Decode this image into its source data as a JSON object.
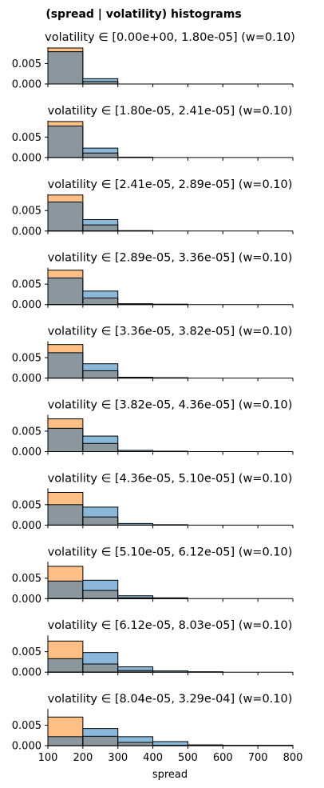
{
  "figure": {
    "title": "(spread | volatility) histograms"
  },
  "colors": {
    "series_a": "#1f77b4",
    "series_b": "#ff7f0e",
    "series_a_fill": "#8ab8da",
    "series_b_fill": "#ffbf85",
    "overlap_fill": "#8b979f",
    "edge": "#000000"
  },
  "chart_data": [
    {
      "type": "bar",
      "title": "volatility ∈ [0.00e+00, 1.80e-05] (w=0.10)",
      "bin_edges": [
        100,
        200,
        300,
        400,
        500,
        600,
        700,
        800
      ],
      "series": [
        {
          "values": [
            0.0079,
            0.0013,
            0,
            0,
            0,
            0,
            0
          ]
        },
        {
          "values": [
            0.0088,
            0.0006,
            0,
            0,
            0,
            0,
            0
          ]
        }
      ],
      "xlim": [
        100,
        800
      ],
      "ylim": [
        0,
        0.0088
      ],
      "yticks": [
        "0.000",
        "0.005"
      ],
      "xlabel": "",
      "ylabel": ""
    },
    {
      "type": "bar",
      "title": "volatility ∈ [1.80e-05, 2.41e-05] (w=0.10)",
      "bin_edges": [
        100,
        200,
        300,
        400,
        500,
        600,
        700,
        800
      ],
      "series": [
        {
          "values": [
            0.0077,
            0.0023,
            0.0001,
            0,
            0,
            0,
            0
          ]
        },
        {
          "values": [
            0.0088,
            0.0011,
            0,
            0,
            0,
            0,
            0
          ]
        }
      ],
      "xlim": [
        100,
        800
      ],
      "ylim": [
        0,
        0.0088
      ],
      "yticks": [
        "0.000",
        "0.005"
      ],
      "xlabel": "",
      "ylabel": ""
    },
    {
      "type": "bar",
      "title": "volatility ∈ [2.41e-05, 2.89e-05] (w=0.10)",
      "bin_edges": [
        100,
        200,
        300,
        400,
        500,
        600,
        700,
        800
      ],
      "series": [
        {
          "values": [
            0.0071,
            0.0028,
            0.0001,
            0,
            0,
            0,
            0
          ]
        },
        {
          "values": [
            0.0088,
            0.0015,
            0,
            0,
            0,
            0,
            0
          ]
        }
      ],
      "xlim": [
        100,
        800
      ],
      "ylim": [
        0,
        0.0088
      ],
      "yticks": [
        "0.000",
        "0.005"
      ],
      "xlabel": "",
      "ylabel": ""
    },
    {
      "type": "bar",
      "title": "volatility ∈ [2.89e-05, 3.36e-05] (w=0.10)",
      "bin_edges": [
        100,
        200,
        300,
        400,
        500,
        600,
        700,
        800
      ],
      "series": [
        {
          "values": [
            0.0065,
            0.0033,
            0.0002,
            0.0001,
            0,
            0,
            0
          ]
        },
        {
          "values": [
            0.0084,
            0.0016,
            0,
            0,
            0,
            0,
            0
          ]
        }
      ],
      "xlim": [
        100,
        800
      ],
      "ylim": [
        0,
        0.0088
      ],
      "yticks": [
        "0.000",
        "0.005"
      ],
      "xlabel": "",
      "ylabel": ""
    },
    {
      "type": "bar",
      "title": "volatility ∈ [3.36e-05, 3.82e-05] (w=0.10)",
      "bin_edges": [
        100,
        200,
        300,
        400,
        500,
        600,
        700,
        800
      ],
      "series": [
        {
          "values": [
            0.0062,
            0.0035,
            0.0002,
            0.0001,
            0,
            0,
            0
          ]
        },
        {
          "values": [
            0.0082,
            0.0018,
            0,
            0,
            0,
            0,
            0
          ]
        }
      ],
      "xlim": [
        100,
        800
      ],
      "ylim": [
        0,
        0.0088
      ],
      "yticks": [
        "0.000",
        "0.005"
      ],
      "xlabel": "",
      "ylabel": ""
    },
    {
      "type": "bar",
      "title": "volatility ∈ [3.82e-05, 4.36e-05] (w=0.10)",
      "bin_edges": [
        100,
        200,
        300,
        400,
        500,
        600,
        700,
        800
      ],
      "series": [
        {
          "values": [
            0.0057,
            0.0038,
            0.0003,
            0.0001,
            0,
            0,
            0
          ]
        },
        {
          "values": [
            0.008,
            0.002,
            0,
            0,
            0,
            0,
            0
          ]
        }
      ],
      "xlim": [
        100,
        800
      ],
      "ylim": [
        0,
        0.0088
      ],
      "yticks": [
        "0.000",
        "0.005"
      ],
      "xlabel": "",
      "ylabel": ""
    },
    {
      "type": "bar",
      "title": "volatility ∈ [4.36e-05, 5.10e-05] (w=0.10)",
      "bin_edges": [
        100,
        200,
        300,
        400,
        500,
        600,
        700,
        800
      ],
      "series": [
        {
          "values": [
            0.005,
            0.0044,
            0.0004,
            0.0001,
            0,
            0,
            0
          ]
        },
        {
          "values": [
            0.008,
            0.002,
            0,
            0,
            0,
            0,
            0
          ]
        }
      ],
      "xlim": [
        100,
        800
      ],
      "ylim": [
        0,
        0.0088
      ],
      "yticks": [
        "0.000",
        "0.005"
      ],
      "xlabel": "",
      "ylabel": ""
    },
    {
      "type": "bar",
      "title": "volatility ∈ [5.10e-05, 6.12e-05] (w=0.10)",
      "bin_edges": [
        100,
        200,
        300,
        400,
        500,
        600,
        700,
        800
      ],
      "series": [
        {
          "values": [
            0.0043,
            0.0045,
            0.0007,
            0.0002,
            0,
            0,
            0
          ]
        },
        {
          "values": [
            0.0079,
            0.002,
            0.0002,
            0,
            0,
            0,
            0
          ]
        }
      ],
      "xlim": [
        100,
        800
      ],
      "ylim": [
        0,
        0.0088
      ],
      "yticks": [
        "0.000",
        "0.005"
      ],
      "xlabel": "",
      "ylabel": ""
    },
    {
      "type": "bar",
      "title": "volatility ∈ [6.12e-05, 8.03e-05] (w=0.10)",
      "bin_edges": [
        100,
        200,
        300,
        400,
        500,
        600,
        700,
        800
      ],
      "series": [
        {
          "values": [
            0.0033,
            0.0048,
            0.0013,
            0.0003,
            0.0001,
            0,
            0
          ]
        },
        {
          "values": [
            0.0076,
            0.002,
            0.0004,
            0,
            0,
            0,
            0
          ]
        }
      ],
      "xlim": [
        100,
        800
      ],
      "ylim": [
        0,
        0.0088
      ],
      "yticks": [
        "0.000",
        "0.005"
      ],
      "xlabel": "",
      "ylabel": ""
    },
    {
      "type": "bar",
      "title": "volatility ∈ [8.04e-05, 3.29e-04] (w=0.10)",
      "bin_edges": [
        100,
        200,
        300,
        400,
        500,
        600,
        700,
        800
      ],
      "series": [
        {
          "values": [
            0.0022,
            0.0042,
            0.0022,
            0.001,
            0.0002,
            0.0001,
            0.0001
          ]
        },
        {
          "values": [
            0.007,
            0.0023,
            0.0008,
            0.0001,
            0,
            0,
            0
          ]
        }
      ],
      "xlim": [
        100,
        800
      ],
      "ylim": [
        0,
        0.0088
      ],
      "yticks": [
        "0.000",
        "0.005"
      ],
      "xticks": [
        "100",
        "200",
        "300",
        "400",
        "500",
        "600",
        "700",
        "800"
      ],
      "xlabel": "spread",
      "ylabel": ""
    }
  ]
}
